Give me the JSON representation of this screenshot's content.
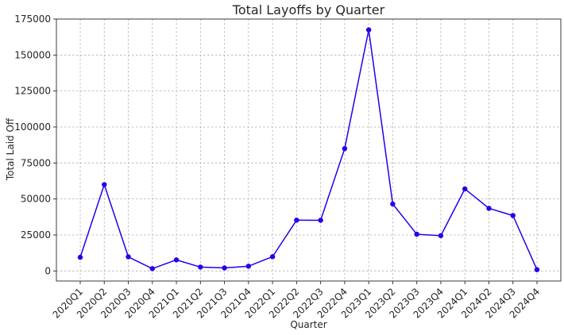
{
  "chart_data": {
    "type": "line",
    "title": "Total Layoffs by Quarter",
    "xlabel": "Quarter",
    "ylabel": "Total Laid Off",
    "categories": [
      "2020Q1",
      "2020Q2",
      "2020Q3",
      "2020Q4",
      "2021Q1",
      "2021Q2",
      "2021Q3",
      "2021Q4",
      "2022Q1",
      "2022Q2",
      "2022Q3",
      "2022Q4",
      "2023Q1",
      "2023Q2",
      "2023Q3",
      "2023Q4",
      "2024Q1",
      "2024Q2",
      "2024Q3",
      "2024Q4"
    ],
    "series": [
      {
        "values": [
          9500,
          60000,
          9800,
          1600,
          7700,
          2700,
          2100,
          3300,
          9900,
          35300,
          35200,
          85000,
          167500,
          46500,
          25500,
          24500,
          57000,
          43500,
          38500,
          900
        ]
      }
    ],
    "ylim": [
      -7000,
      175000
    ],
    "yticks": [
      0,
      25000,
      50000,
      75000,
      100000,
      125000,
      150000,
      175000
    ],
    "ytick_labels": [
      "0",
      "25000",
      "50000",
      "75000",
      "100000",
      "125000",
      "150000",
      "175000"
    ],
    "grid": true,
    "line_color": "#2200ee",
    "marker_color": "#2200ee"
  }
}
